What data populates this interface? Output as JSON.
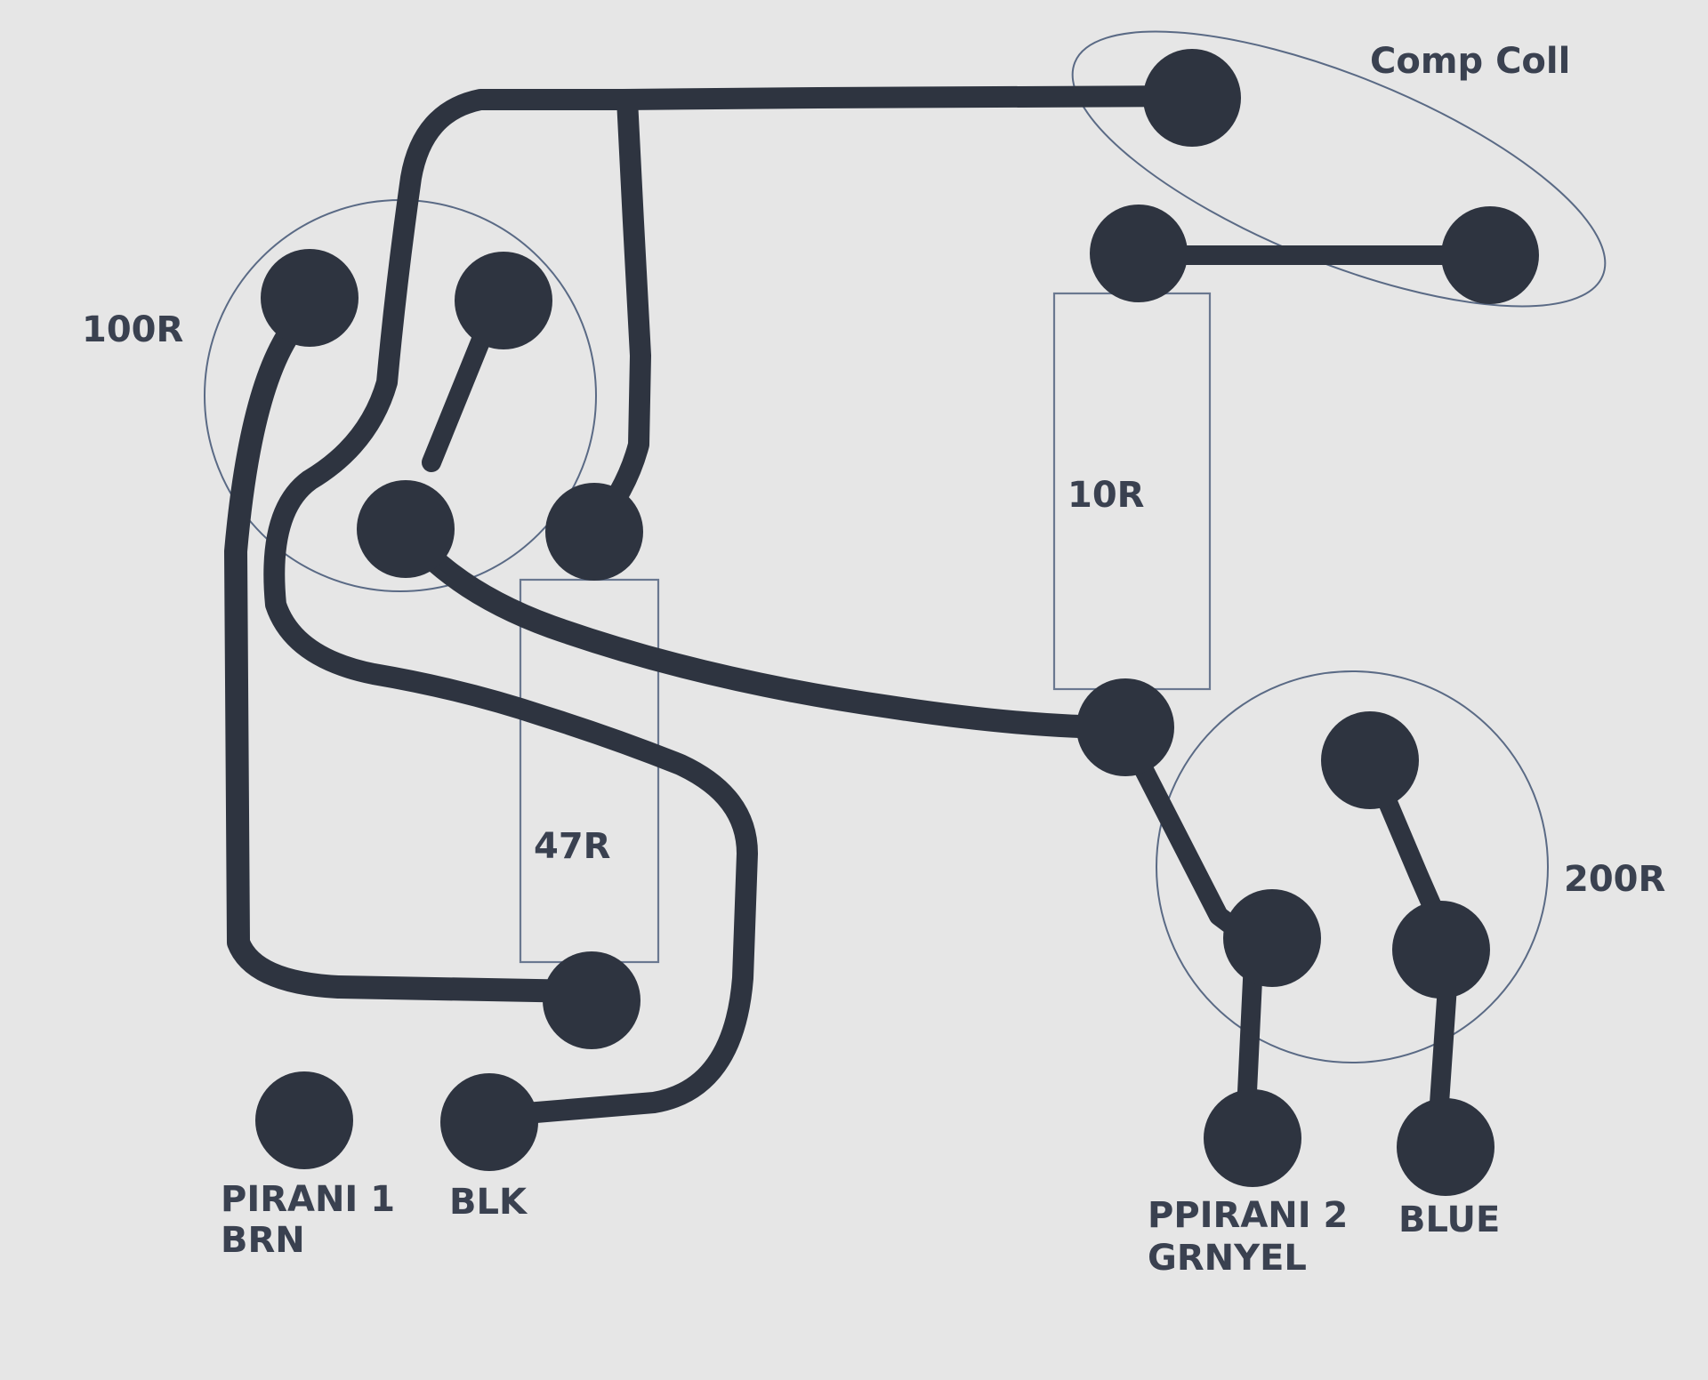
{
  "labels": {
    "comp_coil": "Comp Coll",
    "r100": "100R",
    "r10": "10R",
    "r47": "47R",
    "r200": "200R",
    "pirani1_line1": "PIRANI 1",
    "pirani1_line2": "BRN",
    "blk": "BLK",
    "pirani2_line1": "PPIRANI 2",
    "pirani2_line2": "GRNYEL",
    "blue": "BLUE"
  },
  "colors": {
    "trace": "#2e3440",
    "outline": "#5a6a85",
    "background": "#e6e6e6",
    "label": "#3a4150"
  }
}
